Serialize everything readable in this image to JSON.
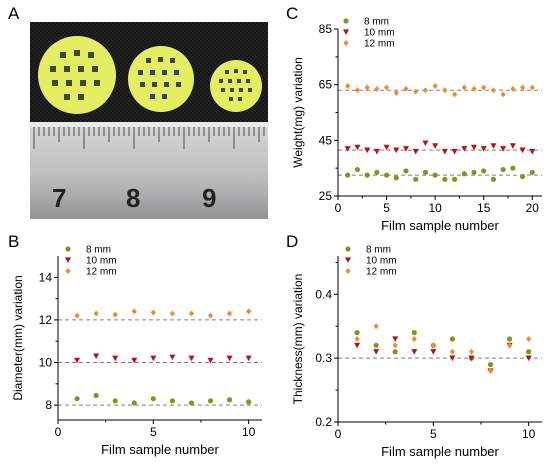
{
  "panels": {
    "a": "A",
    "b": "B",
    "c": "C",
    "d": "D"
  },
  "photo": {
    "ruler_numbers": [
      "7",
      "8",
      "9"
    ],
    "colors": {
      "background": "#1a1a1a",
      "film": "#e6f066",
      "ruler": "#c8cacc"
    }
  },
  "chart_data": [
    {
      "id": "C",
      "type": "scatter",
      "title": "",
      "xlabel": "Film sample number",
      "ylabel": "Weight(mg) variation",
      "xlim": [
        0,
        21
      ],
      "ylim": [
        25,
        85
      ],
      "xticks": [
        0,
        5,
        10,
        15,
        20
      ],
      "yticks": [
        25,
        45,
        65,
        85
      ],
      "legend_position": "top-left",
      "reference_lines": [
        63,
        41.5,
        32.5
      ],
      "series": [
        {
          "name": "8 mm",
          "marker": "circle",
          "color": "#7a9a1e",
          "x": [
            1,
            2,
            3,
            4,
            5,
            6,
            7,
            8,
            9,
            10,
            11,
            12,
            13,
            14,
            15,
            16,
            17,
            18,
            19,
            20
          ],
          "values": [
            32.5,
            34.5,
            32.5,
            33.5,
            32.5,
            31.5,
            34,
            31,
            33.5,
            32.5,
            31,
            31,
            33,
            33.5,
            34,
            31,
            34.5,
            35,
            32,
            33.5
          ]
        },
        {
          "name": "10 mm",
          "marker": "triangle-down",
          "color": "#b5121b",
          "x": [
            1,
            2,
            3,
            4,
            5,
            6,
            7,
            8,
            9,
            10,
            11,
            12,
            13,
            14,
            15,
            16,
            17,
            18,
            19,
            20
          ],
          "values": [
            42,
            42.5,
            41.5,
            41,
            42.5,
            41.5,
            42,
            41,
            44,
            43,
            41,
            41,
            42,
            42.5,
            42,
            43,
            42,
            43,
            41.5,
            41
          ]
        },
        {
          "name": "12 mm",
          "marker": "diamond",
          "color": "#f28a2e",
          "x": [
            1,
            2,
            3,
            4,
            5,
            6,
            7,
            8,
            9,
            10,
            11,
            12,
            13,
            14,
            15,
            16,
            17,
            18,
            19,
            20
          ],
          "values": [
            64.5,
            63,
            64,
            63.5,
            64,
            62,
            63.5,
            62.5,
            63,
            64.5,
            63,
            61.5,
            64,
            63.5,
            64,
            63,
            61.5,
            63.5,
            64,
            64
          ]
        }
      ]
    },
    {
      "id": "B",
      "type": "scatter",
      "title": "",
      "xlabel": "Film sample number",
      "ylabel": "Diameter(mm) variation",
      "xlim": [
        0,
        10.7
      ],
      "ylim": [
        7.3,
        15
      ],
      "xticks": [
        0,
        5,
        10
      ],
      "yticks": [
        8,
        10,
        12,
        14
      ],
      "legend_position": "top-left",
      "reference_lines": [
        12,
        10,
        8
      ],
      "series": [
        {
          "name": "8 mm",
          "marker": "circle",
          "color": "#7a9a1e",
          "x": [
            1,
            2,
            3,
            4,
            5,
            6,
            7,
            8,
            9,
            10
          ],
          "values": [
            8.3,
            8.45,
            8.2,
            8.1,
            8.3,
            8.2,
            8.1,
            8.2,
            8.25,
            8.15
          ]
        },
        {
          "name": "10 mm",
          "marker": "triangle-down",
          "color": "#b5121b",
          "x": [
            1,
            2,
            3,
            4,
            5,
            6,
            7,
            8,
            9,
            10
          ],
          "values": [
            10.1,
            10.3,
            10.2,
            10.1,
            10.2,
            10.25,
            10.2,
            10.1,
            10.2,
            10.2
          ]
        },
        {
          "name": "12 mm",
          "marker": "diamond",
          "color": "#f28a2e",
          "x": [
            1,
            2,
            3,
            4,
            5,
            6,
            7,
            8,
            9,
            10
          ],
          "values": [
            12.2,
            12.3,
            12.25,
            12.4,
            12.35,
            12.3,
            12.3,
            12.2,
            12.3,
            12.4
          ]
        }
      ]
    },
    {
      "id": "D",
      "type": "scatter",
      "title": "",
      "xlabel": "Film sample number",
      "ylabel": "Thickness(mm) variation",
      "xlim": [
        0,
        10.7
      ],
      "ylim": [
        0.2,
        0.46
      ],
      "xticks": [
        0,
        5,
        10
      ],
      "yticks": [
        0.2,
        0.3,
        0.4
      ],
      "legend_position": "top-left",
      "reference_lines": [
        0.3
      ],
      "series": [
        {
          "name": "8 mm",
          "marker": "circle",
          "color": "#7a9a1e",
          "x": [
            1,
            2,
            3,
            4,
            5,
            6,
            7,
            8,
            9,
            10
          ],
          "values": [
            0.34,
            0.32,
            0.31,
            0.34,
            0.32,
            0.33,
            0.3,
            0.29,
            0.33,
            0.31
          ]
        },
        {
          "name": "10 mm",
          "marker": "triangle-down",
          "color": "#b5121b",
          "x": [
            1,
            2,
            3,
            4,
            5,
            6,
            7,
            8,
            9,
            10
          ],
          "values": [
            0.32,
            0.31,
            0.33,
            0.31,
            0.31,
            0.3,
            0.3,
            0.28,
            0.32,
            0.3
          ]
        },
        {
          "name": "12 mm",
          "marker": "diamond",
          "color": "#f28a2e",
          "x": [
            1,
            2,
            3,
            4,
            5,
            6,
            7,
            8,
            9,
            10
          ],
          "values": [
            0.33,
            0.35,
            0.32,
            0.33,
            0.32,
            0.31,
            0.31,
            0.28,
            0.32,
            0.33
          ]
        }
      ]
    }
  ]
}
